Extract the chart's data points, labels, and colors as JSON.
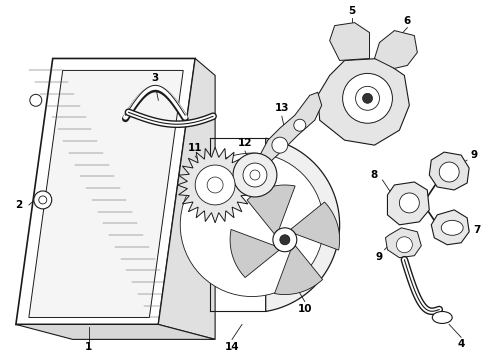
{
  "background_color": "#ffffff",
  "line_color": "#1a1a1a",
  "fig_width": 4.9,
  "fig_height": 3.6,
  "dpi": 100,
  "label_fs": 7.5
}
